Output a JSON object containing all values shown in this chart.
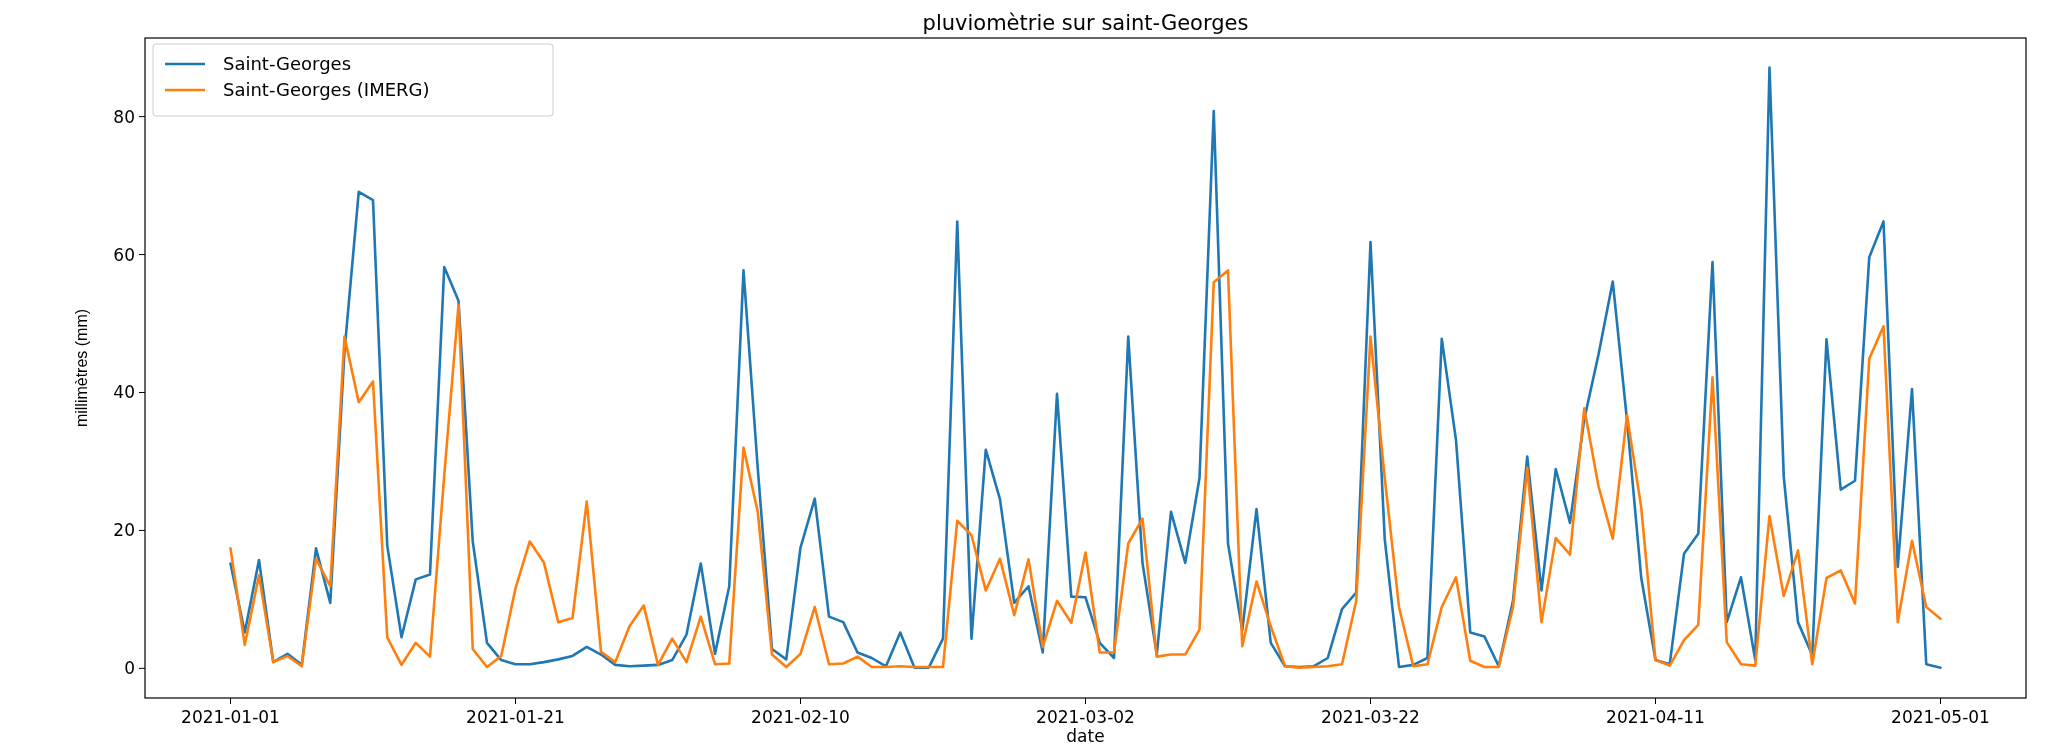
{
  "chart_data": {
    "type": "line",
    "title": "pluviomètrie sur saint-Georges",
    "xlabel": "date",
    "ylabel": "millimètres (mm)",
    "x": [
      "2021-01-01",
      "2021-01-02",
      "2021-01-03",
      "2021-01-04",
      "2021-01-05",
      "2021-01-06",
      "2021-01-07",
      "2021-01-08",
      "2021-01-09",
      "2021-01-10",
      "2021-01-11",
      "2021-01-12",
      "2021-01-13",
      "2021-01-14",
      "2021-01-15",
      "2021-01-16",
      "2021-01-17",
      "2021-01-18",
      "2021-01-19",
      "2021-01-20",
      "2021-01-21",
      "2021-01-22",
      "2021-01-23",
      "2021-01-24",
      "2021-01-25",
      "2021-01-26",
      "2021-01-27",
      "2021-01-28",
      "2021-01-29",
      "2021-01-30",
      "2021-01-31",
      "2021-02-01",
      "2021-02-02",
      "2021-02-03",
      "2021-02-04",
      "2021-02-05",
      "2021-02-06",
      "2021-02-07",
      "2021-02-08",
      "2021-02-09",
      "2021-02-10",
      "2021-02-11",
      "2021-02-12",
      "2021-02-13",
      "2021-02-14",
      "2021-02-15",
      "2021-02-16",
      "2021-02-17",
      "2021-02-18",
      "2021-02-19",
      "2021-02-20",
      "2021-02-21",
      "2021-02-22",
      "2021-02-23",
      "2021-02-24",
      "2021-02-25",
      "2021-02-26",
      "2021-02-27",
      "2021-02-28",
      "2021-03-01",
      "2021-03-02",
      "2021-03-03",
      "2021-03-04",
      "2021-03-05",
      "2021-03-06",
      "2021-03-07",
      "2021-03-08",
      "2021-03-09",
      "2021-03-10",
      "2021-03-11",
      "2021-03-12",
      "2021-03-13",
      "2021-03-14",
      "2021-03-15",
      "2021-03-16",
      "2021-03-17",
      "2021-03-18",
      "2021-03-19",
      "2021-03-20",
      "2021-03-21",
      "2021-03-22",
      "2021-03-23",
      "2021-03-24",
      "2021-03-25",
      "2021-03-26",
      "2021-03-27",
      "2021-03-28",
      "2021-03-29",
      "2021-03-30",
      "2021-03-31",
      "2021-04-01",
      "2021-04-02",
      "2021-04-03",
      "2021-04-04",
      "2021-04-05",
      "2021-04-06",
      "2021-04-07",
      "2021-04-08",
      "2021-04-09",
      "2021-04-10",
      "2021-04-11",
      "2021-04-12",
      "2021-04-13",
      "2021-04-14",
      "2021-04-15",
      "2021-04-16",
      "2021-04-17",
      "2021-04-18",
      "2021-04-19",
      "2021-04-20",
      "2021-04-21",
      "2021-04-22",
      "2021-04-23",
      "2021-04-24",
      "2021-04-25",
      "2021-04-26",
      "2021-04-27",
      "2021-04-28",
      "2021-04-29",
      "2021-04-30",
      "2021-05-01"
    ],
    "series": [
      {
        "name": "Saint-Georges",
        "color": "#1f77b4",
        "values": [
          15.2,
          5.2,
          15.7,
          0.9,
          2.1,
          0.5,
          17.4,
          9.5,
          46,
          69.1,
          67.9,
          17.8,
          4.5,
          12.9,
          13.6,
          58.2,
          53.3,
          18.4,
          3.7,
          1.2,
          0.6,
          0.6,
          0.9,
          1.3,
          1.8,
          3.1,
          2,
          0.5,
          0.3,
          0.4,
          0.5,
          1.2,
          4.9,
          15.2,
          2.1,
          11.9,
          57.7,
          29,
          2.8,
          1.3,
          17.5,
          24.6,
          7.5,
          6.7,
          2.3,
          1.5,
          0.3,
          5.2,
          0.1,
          0.1,
          4.3,
          64.8,
          4.3,
          31.7,
          24.5,
          9.5,
          11.9,
          2.3,
          39.8,
          10.4,
          10.3,
          3.7,
          1.5,
          48.1,
          15.3,
          2,
          22.7,
          15.3,
          27.6,
          80.8,
          18.1,
          5.5,
          23.1,
          3.7,
          0.3,
          0.2,
          0.3,
          1.5,
          8.6,
          11,
          61.8,
          18.7,
          0.2,
          0.5,
          1.5,
          47.8,
          33.1,
          5.2,
          4.6,
          0.3,
          9.8,
          30.7,
          11.3,
          28.9,
          21.1,
          36.1,
          45.5,
          56.1,
          36,
          13.1,
          1.2,
          0.6,
          16.6,
          19.5,
          58.9,
          6.7,
          13.2,
          1.2,
          87.1,
          27.8,
          6.7,
          1.9,
          47.7,
          25.9,
          27.2,
          59.6,
          64.8,
          14.7,
          40.5,
          0.6,
          0.1
        ]
      },
      {
        "name": "Saint-Georges (IMERG)",
        "color": "#ff7f0e",
        "values": [
          17.4,
          3.4,
          13.5,
          0.9,
          1.8,
          0.3,
          15.9,
          11.9,
          48.1,
          38.6,
          41.6,
          4.5,
          0.5,
          3.7,
          1.7,
          28,
          52.7,
          2.8,
          0.2,
          1.8,
          11.6,
          18.4,
          15.3,
          6.7,
          7.3,
          24.2,
          2.4,
          0.9,
          6.1,
          9.1,
          0.5,
          4.3,
          0.9,
          7.5,
          0.6,
          0.7,
          32,
          22.7,
          2,
          0.2,
          2.1,
          8.9,
          0.6,
          0.7,
          1.7,
          0.2,
          0.2,
          0.3,
          0.2,
          0.2,
          0.2,
          21.4,
          19.3,
          11.3,
          15.9,
          7.7,
          15.8,
          3.1,
          9.8,
          6.6,
          16.8,
          2.3,
          2.3,
          18.1,
          21.7,
          1.7,
          2,
          2,
          5.6,
          56,
          57.7,
          3.2,
          12.6,
          6.1,
          0.3,
          0.1,
          0.2,
          0.3,
          0.6,
          9.8,
          48.1,
          27.6,
          8.9,
          0.3,
          0.6,
          8.9,
          13.2,
          1.1,
          0.2,
          0.2,
          8.9,
          29.1,
          6.7,
          18.9,
          16.5,
          37.7,
          26.4,
          18.8,
          36.7,
          23.3,
          1.2,
          0.4,
          4.1,
          6.3,
          42.2,
          3.8,
          0.6,
          0.4,
          22.1,
          10.5,
          17.1,
          0.6,
          13.1,
          14.2,
          9.4,
          44.9,
          49.6,
          6.7,
          18.5,
          8.9,
          7.2
        ]
      }
    ],
    "xlim": [
      "2020-12-26",
      "2021-05-07"
    ],
    "xticks": [
      {
        "value": "2021-01-01",
        "label": "2021-01-01"
      },
      {
        "value": "2021-01-21",
        "label": "2021-01-21"
      },
      {
        "value": "2021-02-10",
        "label": "2021-02-10"
      },
      {
        "value": "2021-03-02",
        "label": "2021-03-02"
      },
      {
        "value": "2021-03-22",
        "label": "2021-03-22"
      },
      {
        "value": "2021-04-11",
        "label": "2021-04-11"
      },
      {
        "value": "2021-05-01",
        "label": "2021-05-01"
      }
    ],
    "ylim": [
      -4.3,
      91.4
    ],
    "yticks": [
      0,
      20,
      40,
      60,
      80
    ],
    "legend": "top left",
    "grid": false,
    "line_style": "solid"
  }
}
